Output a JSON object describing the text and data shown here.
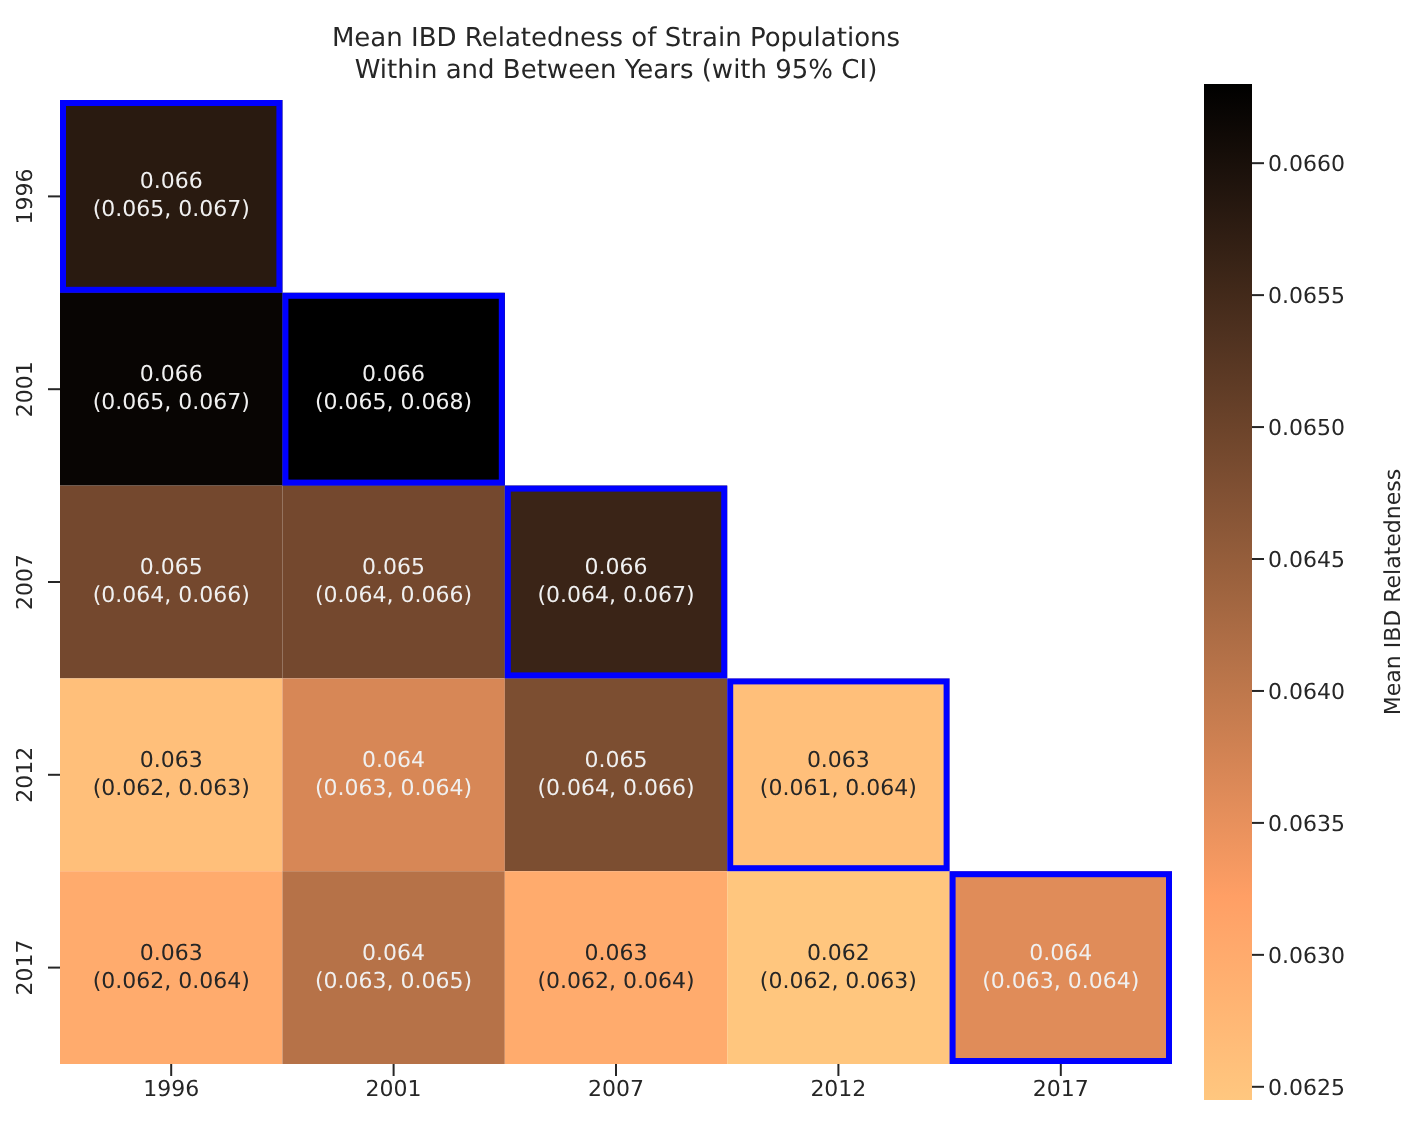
{
  "chart_data": {
    "type": "heatmap",
    "title": "Mean IBD Relatedness of Strain Populations",
    "subtitle": "Within and Between Years (with 95% CI)",
    "clabel": "Mean IBD Relatedness",
    "categories": [
      "1996",
      "2001",
      "2007",
      "2012",
      "2017"
    ],
    "y_categories": [
      "1996",
      "2001",
      "2007",
      "2012",
      "2017"
    ],
    "cells": [
      [
        0.0658,
        null,
        null,
        null,
        null
      ],
      [
        0.0662,
        0.0663,
        null,
        null,
        null
      ],
      [
        0.0649,
        0.0649,
        0.0656,
        null,
        null
      ],
      [
        0.0626,
        0.0637,
        0.0648,
        0.0626,
        null
      ],
      [
        0.063,
        0.0641,
        0.063,
        0.06248,
        0.0636
      ]
    ],
    "cell_labels": [
      [
        "0.066\n(0.065, 0.067)",
        null,
        null,
        null,
        null
      ],
      [
        "0.066\n(0.065, 0.067)",
        "0.066\n(0.065, 0.068)",
        null,
        null,
        null
      ],
      [
        "0.065\n(0.064, 0.066)",
        "0.065\n(0.064, 0.066)",
        "0.066\n(0.064, 0.067)",
        null,
        null
      ],
      [
        "0.063\n(0.062, 0.063)",
        "0.064\n(0.063, 0.064)",
        "0.065\n(0.064, 0.066)",
        "0.063\n(0.061, 0.064)",
        null
      ],
      [
        "0.063\n(0.062, 0.064)",
        "0.064\n(0.063, 0.065)",
        "0.063\n(0.062, 0.064)",
        "0.062\n(0.062, 0.063)",
        "0.064\n(0.063, 0.064)"
      ]
    ],
    "clim": [
      0.06245,
      0.0663
    ],
    "cticks": [
      0.0625,
      {
        "value": 0.063,
        "label": "0.0630"
      },
      0.0635,
      {
        "value": 0.064,
        "label": "0.0640"
      },
      0.0645,
      {
        "value": 0.065,
        "label": "0.0650"
      },
      0.0655,
      {
        "value": 0.066,
        "label": "0.0660"
      }
    ]
  }
}
